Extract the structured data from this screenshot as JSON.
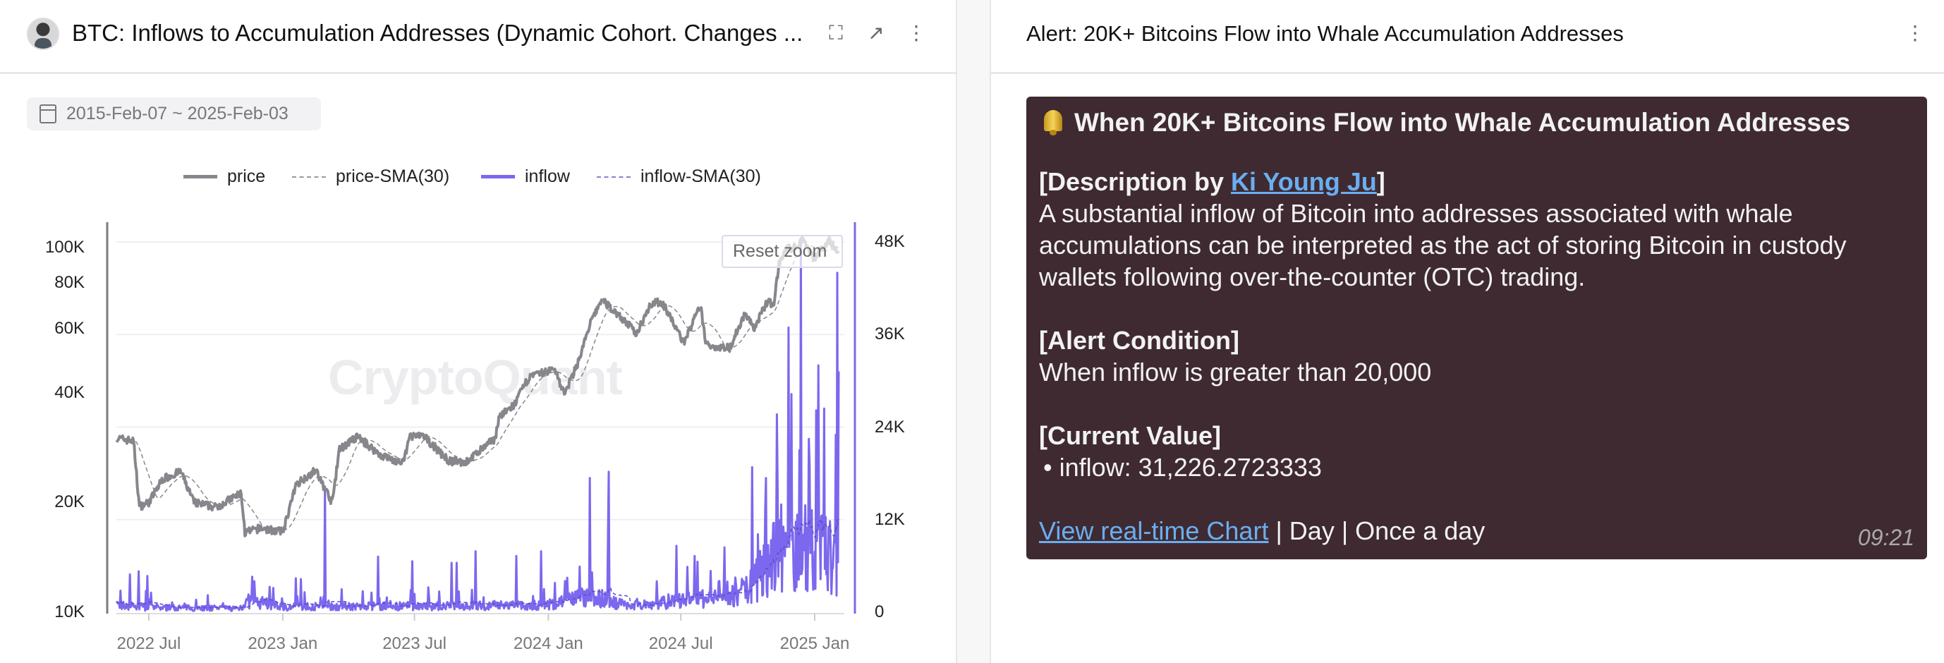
{
  "left_panel": {
    "title": "BTC: Inflows to Accumulation Addresses (Dynamic Cohort. Changes ...",
    "date_range": "2015-Feb-07 ~ 2025-Feb-03",
    "reset_zoom": "Reset zoom",
    "watermark": "CryptoQuant"
  },
  "right_panel": {
    "title": "Alert: 20K+ Bitcoins Flow into Whale Accumulation Addresses",
    "card": {
      "heading": "When 20K+ Bitcoins Flow into Whale Accumulation Addresses",
      "desc_prefix": "[Description by ",
      "author": "Ki Young Ju",
      "desc_suffix": "]",
      "description": "A substantial inflow of Bitcoin into addresses associated with whale accumulations can be interpreted as the act of storing Bitcoin in custody wallets following over-the-counter (OTC) trading.",
      "condition_heading": "[Alert Condition]",
      "condition": "When inflow is greater than 20,000",
      "current_heading": "[Current Value]",
      "current_value": "• inflow: 31,226.2723333",
      "link": "View real-time Chart",
      "footer_rest": " | Day | Once a day",
      "time": "09:21"
    }
  },
  "chart_data": {
    "type": "line",
    "legend": [
      "price",
      "price-SMA(30)",
      "inflow",
      "inflow-SMA(30)"
    ],
    "legend_position": "top",
    "colors": {
      "price": "#86868c",
      "inflow": "#7b68ee",
      "sma": "#888888",
      "inflow_sma": "#5a4fc8"
    },
    "x_ticks": [
      "2022 Jul",
      "2023 Jan",
      "2023 Jul",
      "2024 Jan",
      "2024 Jul",
      "2025 Jan"
    ],
    "x_tick_dates": [
      "2022-07-01",
      "2023-01-01",
      "2023-07-01",
      "2024-01-01",
      "2024-07-01",
      "2025-01-01"
    ],
    "xlim": [
      "2022-05-18",
      "2025-02-03"
    ],
    "y_left": {
      "scale": "log",
      "ticks": [
        "10K",
        "20K",
        "40K",
        "60K",
        "80K",
        "100K"
      ],
      "tick_values": [
        10000,
        20000,
        40000,
        60000,
        80000,
        100000
      ]
    },
    "y_right": {
      "scale": "linear",
      "ticks": [
        "0",
        "12K",
        "24K",
        "36K",
        "48K"
      ],
      "tick_values": [
        0,
        12000,
        24000,
        36000,
        48000
      ],
      "ylim": [
        0,
        48000
      ]
    },
    "grid": true,
    "price": [
      [
        "2022-05-18",
        30000
      ],
      [
        "2022-06-10",
        29500
      ],
      [
        "2022-06-18",
        19500
      ],
      [
        "2022-07-01",
        20000
      ],
      [
        "2022-07-20",
        23200
      ],
      [
        "2022-08-14",
        24300
      ],
      [
        "2022-09-01",
        20000
      ],
      [
        "2022-10-01",
        19400
      ],
      [
        "2022-11-05",
        21200
      ],
      [
        "2022-11-10",
        16500
      ],
      [
        "2022-12-01",
        17000
      ],
      [
        "2023-01-01",
        16600
      ],
      [
        "2023-01-20",
        22500
      ],
      [
        "2023-02-15",
        24500
      ],
      [
        "2023-03-10",
        20000
      ],
      [
        "2023-03-20",
        28000
      ],
      [
        "2023-04-14",
        30300
      ],
      [
        "2023-05-15",
        27000
      ],
      [
        "2023-06-15",
        25500
      ],
      [
        "2023-06-25",
        30500
      ],
      [
        "2023-07-15",
        30200
      ],
      [
        "2023-08-17",
        26000
      ],
      [
        "2023-09-10",
        25800
      ],
      [
        "2023-10-20",
        30000
      ],
      [
        "2023-10-25",
        34200
      ],
      [
        "2023-11-15",
        37000
      ],
      [
        "2023-12-05",
        44000
      ],
      [
        "2024-01-10",
        46500
      ],
      [
        "2024-01-23",
        39500
      ],
      [
        "2024-02-10",
        48000
      ],
      [
        "2024-02-28",
        62000
      ],
      [
        "2024-03-14",
        72000
      ],
      [
        "2024-04-15",
        63000
      ],
      [
        "2024-05-01",
        58000
      ],
      [
        "2024-05-20",
        70000
      ],
      [
        "2024-06-05",
        71000
      ],
      [
        "2024-07-05",
        55000
      ],
      [
        "2024-07-28",
        69000
      ],
      [
        "2024-08-05",
        54000
      ],
      [
        "2024-09-06",
        53000
      ],
      [
        "2024-09-27",
        66000
      ],
      [
        "2024-10-10",
        60000
      ],
      [
        "2024-10-29",
        72000
      ],
      [
        "2024-11-05",
        69000
      ],
      [
        "2024-11-13",
        90000
      ],
      [
        "2024-11-22",
        99000
      ],
      [
        "2024-12-05",
        100000
      ],
      [
        "2024-12-17",
        106000
      ],
      [
        "2024-12-30",
        93000
      ],
      [
        "2025-01-20",
        105000
      ],
      [
        "2025-02-03",
        97000
      ]
    ],
    "inflow_baseline": [
      [
        "2022-05-18",
        900
      ],
      [
        "2022-07-15",
        600
      ],
      [
        "2022-11-01",
        500
      ],
      [
        "2022-11-15",
        1400
      ],
      [
        "2023-01-01",
        700
      ],
      [
        "2024-01-01",
        900
      ],
      [
        "2024-03-01",
        2200
      ],
      [
        "2024-04-15",
        900
      ],
      [
        "2024-07-01",
        1500
      ],
      [
        "2024-09-15",
        2000
      ],
      [
        "2024-10-20",
        5000
      ],
      [
        "2024-11-20",
        9000
      ],
      [
        "2025-02-03",
        7000
      ]
    ],
    "inflow_spikes": [
      [
        "2022-06-05",
        4900
      ],
      [
        "2022-06-17",
        5300
      ],
      [
        "2022-06-29",
        4700
      ],
      [
        "2022-11-20",
        4600
      ],
      [
        "2023-01-19",
        4400
      ],
      [
        "2023-01-26",
        4300
      ],
      [
        "2023-02-28",
        16300
      ],
      [
        "2023-05-12",
        7200
      ],
      [
        "2023-06-28",
        6600
      ],
      [
        "2023-08-21",
        6400
      ],
      [
        "2023-08-28",
        6400
      ],
      [
        "2023-09-23",
        7900
      ],
      [
        "2023-11-18",
        7300
      ],
      [
        "2023-12-22",
        7900
      ],
      [
        "2024-02-27",
        17400
      ],
      [
        "2024-03-23",
        10500
      ],
      [
        "2024-03-24",
        18200
      ],
      [
        "2024-06-25",
        8600
      ],
      [
        "2024-07-20",
        7300
      ],
      [
        "2024-08-30",
        8400
      ],
      [
        "2024-10-07",
        18800
      ],
      [
        "2024-10-15",
        10100
      ],
      [
        "2024-11-11",
        16700
      ],
      [
        "2024-11-26",
        36900
      ],
      [
        "2024-12-11",
        21000
      ],
      [
        "2024-12-13",
        48500
      ],
      [
        "2024-12-25",
        19000
      ],
      [
        "2025-01-06",
        32000
      ],
      [
        "2025-01-14",
        26400
      ],
      [
        "2025-01-22",
        11800
      ],
      [
        "2025-01-30",
        23000
      ],
      [
        "2025-02-01",
        44000
      ],
      [
        "2025-02-03",
        31226
      ]
    ]
  }
}
